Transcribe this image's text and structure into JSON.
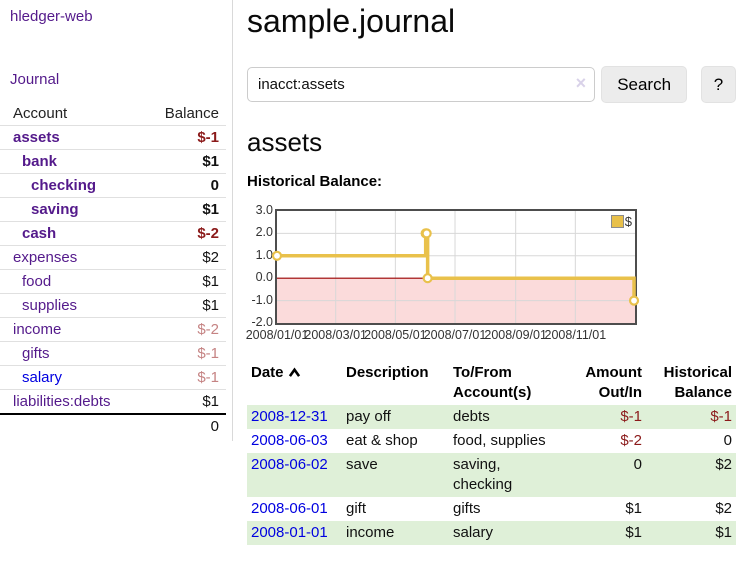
{
  "app": {
    "brand": "hledger-web"
  },
  "sidebar": {
    "nav_journal": "Journal",
    "accounts_table": {
      "headers": {
        "account": "Account",
        "balance": "Balance"
      },
      "rows": [
        {
          "account": "assets",
          "balance": "$-1",
          "indent": 1,
          "bold": true,
          "balance_style": "neg-strong"
        },
        {
          "account": "bank",
          "balance": "$1",
          "indent": 2,
          "bold": true,
          "balance_style": "pos-strong"
        },
        {
          "account": "checking",
          "balance": "0",
          "indent": 3,
          "bold": true,
          "balance_style": "pos-strong"
        },
        {
          "account": "saving",
          "balance": "$1",
          "indent": 3,
          "bold": true,
          "balance_style": "pos-strong"
        },
        {
          "account": "cash",
          "balance": "$-2",
          "indent": 2,
          "bold": true,
          "balance_style": "neg-strong"
        },
        {
          "account": "expenses",
          "balance": "$2",
          "indent": 1,
          "bold": false,
          "balance_style": "pos"
        },
        {
          "account": "food",
          "balance": "$1",
          "indent": 2,
          "bold": false,
          "balance_style": "pos"
        },
        {
          "account": "supplies",
          "balance": "$1",
          "indent": 2,
          "bold": false,
          "balance_style": "pos"
        },
        {
          "account": "income",
          "balance": "$-2",
          "indent": 1,
          "bold": false,
          "balance_style": "neg-faded"
        },
        {
          "account": "gifts",
          "balance": "$-1",
          "indent": 2,
          "bold": false,
          "balance_style": "neg-faded"
        },
        {
          "account": "salary",
          "balance": "$-1",
          "indent": 2,
          "bold": false,
          "balance_style": "neg-faded",
          "link_color": "blue"
        },
        {
          "account": "liabilities:debts",
          "balance": "$1",
          "indent": 1,
          "bold": false,
          "balance_style": "pos"
        }
      ],
      "total": "0"
    }
  },
  "header": {
    "title": "sample.journal"
  },
  "search": {
    "value": "inacct:assets",
    "clear_icon": "×",
    "button_label": "Search",
    "help_label": "?"
  },
  "account_page": {
    "heading": "assets",
    "chart_label": "Historical Balance:"
  },
  "chart_data": {
    "type": "line",
    "step": true,
    "title": "Historical Balance:",
    "series": [
      {
        "name": "$",
        "points": [
          {
            "x": "2008-01-01",
            "y": 1
          },
          {
            "x": "2008-06-01",
            "y": 2
          },
          {
            "x": "2008-06-02",
            "y": 2
          },
          {
            "x": "2008-06-03",
            "y": 0
          },
          {
            "x": "2008-12-31",
            "y": -1
          }
        ]
      }
    ],
    "xrange": [
      "2008-01-01",
      "2009-01-01"
    ],
    "ylim": [
      -2,
      3
    ],
    "yticks": [
      3.0,
      2.0,
      1.0,
      0.0,
      -1.0,
      -2.0
    ],
    "xtick_labels": [
      "2008/01/01",
      "2008/03/01",
      "2008/05/01",
      "2008/07/01",
      "2008/09/01",
      "2008/11/01"
    ],
    "grid": true,
    "legend": {
      "position": "top-right",
      "label": "$"
    },
    "colors": {
      "line": "#e9c14b",
      "marker_fill": "#ffffff",
      "negative_region": "#fbdbdb",
      "zero_line": "#990000",
      "grid": "#d8d8d8",
      "border": "#4d4d4d"
    }
  },
  "register": {
    "headers": {
      "date": "Date",
      "description": "Description",
      "tofrom": "To/From Account(s)",
      "amount": "Amount Out/In",
      "balance": "Historical Balance"
    },
    "sort": {
      "column": "date",
      "direction": "ascending"
    },
    "rows": [
      {
        "date": "2008-12-31",
        "description": "pay off",
        "accounts": "debts",
        "amount": "$-1",
        "amount_style": "neg",
        "balance": "$-1",
        "balance_style": "neg",
        "striped": true
      },
      {
        "date": "2008-06-03",
        "description": "eat & shop",
        "accounts": "food, supplies",
        "amount": "$-2",
        "amount_style": "neg",
        "balance": "0",
        "balance_style": "pos",
        "striped": false
      },
      {
        "date": "2008-06-02",
        "description": "save",
        "accounts": "saving,\nchecking",
        "amount": "0",
        "amount_style": "pos",
        "balance": "$2",
        "balance_style": "pos",
        "striped": true
      },
      {
        "date": "2008-06-01",
        "description": "gift",
        "accounts": "gifts",
        "amount": "$1",
        "amount_style": "pos",
        "balance": "$2",
        "balance_style": "pos",
        "striped": false
      },
      {
        "date": "2008-01-01",
        "description": "income",
        "accounts": "salary",
        "amount": "$1",
        "amount_style": "pos",
        "balance": "$1",
        "balance_style": "pos",
        "striped": true
      }
    ]
  }
}
